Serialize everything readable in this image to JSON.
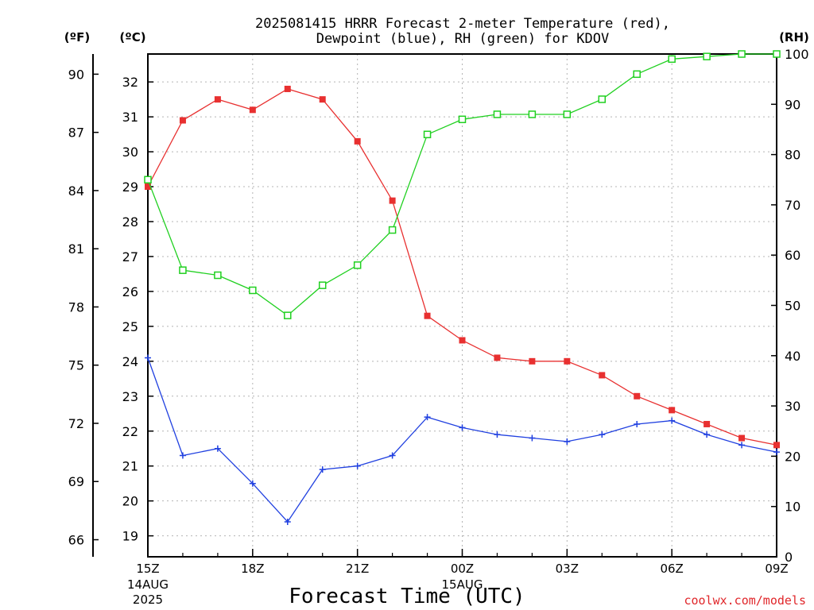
{
  "chart_data": {
    "type": "line",
    "title_line1": "2025081415 HRRR Forecast 2-meter Temperature (red),",
    "title_line2": "Dewpoint (blue), RH (green) for KDOV",
    "xlabel": "Forecast Time (UTC)",
    "credit": "coolwx.com/models",
    "unit_f": "(ºF)",
    "unit_c": "(ºC)",
    "unit_rh": "(RH)",
    "x": [
      "15Z",
      "16Z",
      "17Z",
      "18Z",
      "19Z",
      "20Z",
      "21Z",
      "22Z",
      "23Z",
      "00Z",
      "01Z",
      "02Z",
      "03Z",
      "04Z",
      "05Z",
      "06Z",
      "07Z",
      "08Z",
      "09Z"
    ],
    "x_ticks": [
      {
        "index": 0,
        "label": "15Z",
        "date": "14AUG",
        "year": "2025"
      },
      {
        "index": 3,
        "label": "18Z"
      },
      {
        "index": 6,
        "label": "21Z"
      },
      {
        "index": 9,
        "label": "00Z",
        "date": "15AUG"
      },
      {
        "index": 12,
        "label": "03Z"
      },
      {
        "index": 15,
        "label": "06Z"
      },
      {
        "index": 18,
        "label": "09Z"
      }
    ],
    "celsius_range": [
      18.4,
      32.8
    ],
    "rh_range": [
      0,
      100
    ],
    "celsius_ticks": [
      19,
      20,
      21,
      22,
      23,
      24,
      25,
      26,
      27,
      28,
      29,
      30,
      31,
      32
    ],
    "fahrenheit_ticks": [
      66,
      69,
      72,
      75,
      78,
      81,
      84,
      87,
      90
    ],
    "rh_ticks": [
      0,
      10,
      20,
      30,
      40,
      50,
      60,
      70,
      80,
      90,
      100
    ],
    "grid": true,
    "series": [
      {
        "name": "Temperature",
        "unit": "C",
        "color": "#e83030",
        "marker": "filled-square",
        "values": [
          29.0,
          30.9,
          31.5,
          31.2,
          31.8,
          31.5,
          30.3,
          28.6,
          25.3,
          24.6,
          24.1,
          24.0,
          24.0,
          23.6,
          23.0,
          22.6,
          22.2,
          21.8,
          21.6
        ]
      },
      {
        "name": "Dewpoint",
        "unit": "C",
        "color": "#2040e0",
        "marker": "plus",
        "values": [
          24.1,
          21.3,
          21.5,
          20.5,
          19.4,
          20.9,
          21.0,
          21.3,
          22.4,
          22.1,
          21.9,
          21.8,
          21.7,
          21.9,
          22.2,
          22.3,
          21.9,
          21.6,
          21.4
        ]
      },
      {
        "name": "RH",
        "unit": "%",
        "color": "#20d020",
        "marker": "open-square",
        "values": [
          75,
          57,
          56,
          53,
          48,
          54,
          58,
          65,
          84,
          87,
          88,
          88,
          88,
          91,
          96,
          99,
          99.5,
          100,
          100
        ]
      }
    ]
  }
}
